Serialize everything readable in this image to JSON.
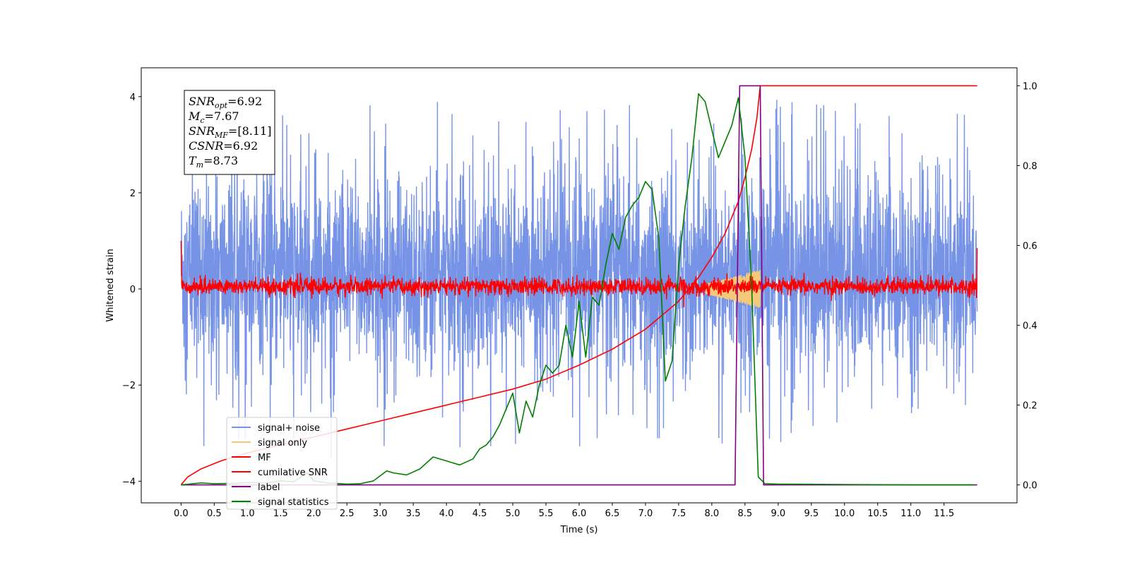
{
  "chart_data": {
    "type": "line",
    "xlabel": "Time (s)",
    "ylabel": "Whitened strain",
    "xlim": [
      -0.6,
      12.6
    ],
    "ylim": [
      -4.45,
      4.6
    ],
    "y2lim": [
      -0.045,
      1.045
    ],
    "x_ticks": [
      0.0,
      0.5,
      1.0,
      1.5,
      2.0,
      2.5,
      3.0,
      3.5,
      4.0,
      4.5,
      5.0,
      5.5,
      6.0,
      6.5,
      7.0,
      7.5,
      8.0,
      8.5,
      9.0,
      9.5,
      10.0,
      10.5,
      11.0,
      11.5
    ],
    "x_tick_labels": [
      "0.0",
      "0.5",
      "1.0",
      "1.5",
      "2.0",
      "2.5",
      "3.0",
      "3.5",
      "4.0",
      "4.5",
      "5.0",
      "5.5",
      "6.0",
      "6.5",
      "7.0",
      "7.5",
      "8.0",
      "8.5",
      "9.0",
      "9.5",
      "10.0",
      "10.5",
      "11.0",
      "11.5"
    ],
    "y_ticks": [
      -4,
      -2,
      0,
      2,
      4
    ],
    "y_tick_labels": [
      "−4",
      "−2",
      "0",
      "2",
      "4"
    ],
    "y2_ticks": [
      0.0,
      0.2,
      0.4,
      0.6,
      0.8,
      1.0
    ],
    "y2_tick_labels": [
      "0.0",
      "0.2",
      "0.4",
      "0.6",
      "0.8",
      "1.0"
    ],
    "legend_position": "lower-left",
    "annotation": {
      "lines": [
        {
          "main": "SNR",
          "sub": "opt",
          "value": "=6.92"
        },
        {
          "main": "M",
          "sub": "c",
          "value": "=7.67"
        },
        {
          "main": "SNR",
          "sub": "MF",
          "value": "=[8.11]"
        },
        {
          "main": "CSNR",
          "sub": "",
          "value": "=6.92"
        },
        {
          "main": "T",
          "sub": "m",
          "value": "=8.73"
        }
      ]
    },
    "series": [
      {
        "name": "signal+ noise",
        "axis": "left",
        "color": "#7693e6",
        "kind": "noise",
        "x_range": [
          0.0,
          12.0
        ],
        "amplitude_range": [
          -3.6,
          4.15
        ],
        "typical_band": [
          -2.0,
          2.6
        ]
      },
      {
        "name": "signal only",
        "axis": "left",
        "color": "#f5c97a",
        "kind": "chirp",
        "x_range": [
          7.9,
          8.73
        ],
        "peak_amplitude": 0.4
      },
      {
        "name": "MF",
        "axis": "left",
        "color": "#ff0000",
        "kind": "noise",
        "x_range": [
          0.0,
          12.0
        ],
        "typical_band": [
          -0.2,
          0.3
        ],
        "endpoint_values": [
          1.0,
          0.85
        ]
      },
      {
        "name": "cumilative SNR",
        "axis": "right",
        "color": "#ff0000",
        "x": [
          0.0,
          0.1,
          0.3,
          0.6,
          1.0,
          1.5,
          2.0,
          2.5,
          3.0,
          3.5,
          4.0,
          4.5,
          5.0,
          5.5,
          6.0,
          6.5,
          7.0,
          7.5,
          7.8,
          8.0,
          8.2,
          8.4,
          8.5,
          8.6,
          8.68,
          8.73,
          9.0,
          10.0,
          11.0,
          12.0
        ],
        "values": [
          0.0,
          0.02,
          0.04,
          0.06,
          0.08,
          0.1,
          0.12,
          0.14,
          0.16,
          0.18,
          0.2,
          0.22,
          0.24,
          0.265,
          0.3,
          0.34,
          0.39,
          0.46,
          0.52,
          0.57,
          0.63,
          0.71,
          0.77,
          0.84,
          0.92,
          1.0,
          1.0,
          1.0,
          1.0,
          1.0
        ]
      },
      {
        "name": "label",
        "axis": "right",
        "color": "#800080",
        "x": [
          0.0,
          8.35,
          8.42,
          8.73,
          8.78,
          12.0
        ],
        "values": [
          0.0,
          0.0,
          1.0,
          1.0,
          0.0,
          0.0
        ]
      },
      {
        "name": "signal statistics",
        "axis": "right",
        "color": "#008000",
        "x": [
          0.0,
          0.3,
          0.5,
          0.8,
          1.0,
          1.3,
          1.5,
          1.7,
          1.9,
          2.0,
          2.2,
          2.5,
          2.7,
          2.9,
          3.1,
          3.2,
          3.4,
          3.6,
          3.8,
          3.9,
          4.0,
          4.2,
          4.4,
          4.5,
          4.6,
          4.7,
          4.8,
          4.9,
          5.0,
          5.1,
          5.2,
          5.3,
          5.4,
          5.5,
          5.6,
          5.7,
          5.8,
          5.9,
          6.0,
          6.1,
          6.2,
          6.3,
          6.4,
          6.5,
          6.6,
          6.7,
          6.8,
          6.9,
          7.0,
          7.1,
          7.2,
          7.3,
          7.4,
          7.5,
          7.6,
          7.7,
          7.8,
          7.9,
          8.0,
          8.1,
          8.2,
          8.3,
          8.4,
          8.5,
          8.6,
          8.7,
          8.8,
          9.0,
          10.0,
          11.0,
          11.95
        ],
        "values": [
          0.0,
          0.005,
          0.003,
          0.004,
          0.006,
          0.005,
          0.01,
          0.008,
          0.03,
          0.01,
          0.005,
          0.002,
          0.003,
          0.01,
          0.035,
          0.03,
          0.025,
          0.04,
          0.07,
          0.065,
          0.06,
          0.05,
          0.065,
          0.09,
          0.1,
          0.12,
          0.15,
          0.19,
          0.23,
          0.13,
          0.21,
          0.17,
          0.25,
          0.3,
          0.28,
          0.3,
          0.4,
          0.32,
          0.46,
          0.32,
          0.47,
          0.45,
          0.55,
          0.63,
          0.59,
          0.67,
          0.7,
          0.72,
          0.76,
          0.74,
          0.62,
          0.26,
          0.31,
          0.55,
          0.7,
          0.82,
          0.98,
          0.96,
          0.89,
          0.82,
          0.86,
          0.9,
          0.97,
          0.82,
          0.5,
          0.02,
          0.003,
          0.002,
          0.001,
          0.0,
          0.0
        ]
      }
    ]
  }
}
